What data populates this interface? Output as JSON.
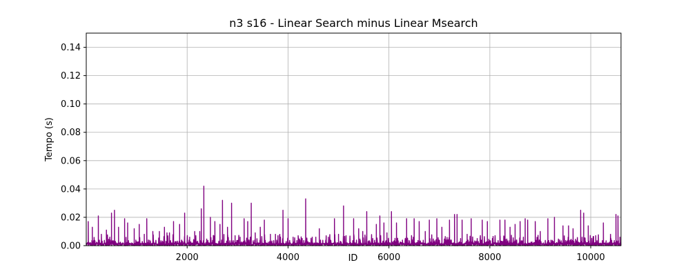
{
  "chart_data": {
    "type": "line",
    "title": "n3 s16 - Linear Search minus Linear Msearch",
    "xlabel": "ID",
    "ylabel": "Tempo (s)",
    "xlim": [
      0,
      10600
    ],
    "ylim": [
      0,
      0.15
    ],
    "xticks": [
      2000,
      4000,
      6000,
      8000,
      10000
    ],
    "yticks": [
      0.0,
      0.02,
      0.04,
      0.06,
      0.08,
      0.1,
      0.12,
      0.14
    ],
    "xtick_labels": [
      "2000",
      "4000",
      "6000",
      "8000",
      "10000"
    ],
    "ytick_labels": [
      "0.00",
      "0.02",
      "0.04",
      "0.06",
      "0.08",
      "0.10",
      "0.12",
      "0.14"
    ],
    "grid": true,
    "series": [
      {
        "color": "#800080",
        "spikes": [
          [
            40,
            0.017
          ],
          [
            120,
            0.013
          ],
          [
            240,
            0.021
          ],
          [
            300,
            0.008
          ],
          [
            400,
            0.011
          ],
          [
            500,
            0.023
          ],
          [
            560,
            0.025
          ],
          [
            640,
            0.013
          ],
          [
            760,
            0.019
          ],
          [
            820,
            0.016
          ],
          [
            950,
            0.012
          ],
          [
            1050,
            0.015
          ],
          [
            1150,
            0.008
          ],
          [
            1200,
            0.019
          ],
          [
            1320,
            0.01
          ],
          [
            1450,
            0.01
          ],
          [
            1550,
            0.013
          ],
          [
            1600,
            0.009
          ],
          [
            1650,
            0.009
          ],
          [
            1730,
            0.017
          ],
          [
            1850,
            0.015
          ],
          [
            1950,
            0.023
          ],
          [
            2050,
            0.006
          ],
          [
            2150,
            0.01
          ],
          [
            2250,
            0.01
          ],
          [
            2280,
            0.026
          ],
          [
            2330,
            0.042
          ],
          [
            2460,
            0.02
          ],
          [
            2550,
            0.017
          ],
          [
            2650,
            0.015
          ],
          [
            2700,
            0.032
          ],
          [
            2800,
            0.013
          ],
          [
            2880,
            0.03
          ],
          [
            2950,
            0.007
          ],
          [
            3050,
            0.006
          ],
          [
            3130,
            0.019
          ],
          [
            3200,
            0.017
          ],
          [
            3270,
            0.03
          ],
          [
            3350,
            0.009
          ],
          [
            3450,
            0.013
          ],
          [
            3530,
            0.018
          ],
          [
            3650,
            0.008
          ],
          [
            3750,
            0.008
          ],
          [
            3800,
            0.007
          ],
          [
            3850,
            0.006
          ],
          [
            3900,
            0.025
          ],
          [
            4000,
            0.019
          ],
          [
            4100,
            0.006
          ],
          [
            4200,
            0.007
          ],
          [
            4280,
            0.005
          ],
          [
            4350,
            0.033
          ],
          [
            4480,
            0.006
          ],
          [
            4550,
            0.006
          ],
          [
            4620,
            0.012
          ],
          [
            4800,
            0.006
          ],
          [
            4920,
            0.019
          ],
          [
            5000,
            0.008
          ],
          [
            5100,
            0.028
          ],
          [
            5150,
            0.007
          ],
          [
            5300,
            0.019
          ],
          [
            5400,
            0.012
          ],
          [
            5480,
            0.01
          ],
          [
            5560,
            0.024
          ],
          [
            5680,
            0.005
          ],
          [
            5750,
            0.015
          ],
          [
            5820,
            0.021
          ],
          [
            5900,
            0.016
          ],
          [
            5960,
            0.009
          ],
          [
            6050,
            0.024
          ],
          [
            6150,
            0.016
          ],
          [
            6350,
            0.019
          ],
          [
            6500,
            0.019
          ],
          [
            6600,
            0.017
          ],
          [
            6720,
            0.01
          ],
          [
            6800,
            0.018
          ],
          [
            6950,
            0.019
          ],
          [
            7050,
            0.013
          ],
          [
            7200,
            0.018
          ],
          [
            7300,
            0.022
          ],
          [
            7350,
            0.022
          ],
          [
            7450,
            0.018
          ],
          [
            7550,
            0.008
          ],
          [
            7630,
            0.019
          ],
          [
            7750,
            0.005
          ],
          [
            7850,
            0.018
          ],
          [
            7950,
            0.017
          ],
          [
            8050,
            0.005
          ],
          [
            8200,
            0.018
          ],
          [
            8300,
            0.018
          ],
          [
            8400,
            0.013
          ],
          [
            8500,
            0.015
          ],
          [
            8600,
            0.017
          ],
          [
            8700,
            0.019
          ],
          [
            8750,
            0.018
          ],
          [
            8900,
            0.017
          ],
          [
            9000,
            0.01
          ],
          [
            9150,
            0.019
          ],
          [
            9280,
            0.02
          ],
          [
            9450,
            0.014
          ],
          [
            9560,
            0.014
          ],
          [
            9650,
            0.012
          ],
          [
            9800,
            0.025
          ],
          [
            9860,
            0.023
          ],
          [
            9950,
            0.014
          ],
          [
            10100,
            0.007
          ],
          [
            10250,
            0.016
          ],
          [
            10400,
            0.005
          ],
          [
            10500,
            0.022
          ],
          [
            10540,
            0.021
          ],
          [
            10580,
            0.006
          ]
        ]
      }
    ]
  }
}
